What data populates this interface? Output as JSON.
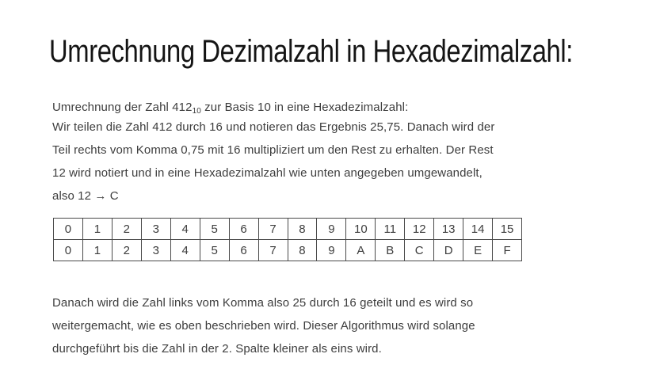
{
  "title": "Umrechnung Dezimalzahl in Hexadezimalzahl:",
  "intro": {
    "prefix": "Umrechnung der Zahl 412",
    "subscript": "10",
    "suffix": " zur Basis 10 in eine Hexadezimalzahl:"
  },
  "paragraph_method": {
    "lines": [
      "Wir teilen die Zahl 412 durch 16 und notieren das Ergebnis 25,75. Danach wird der",
      "Teil rechts vom Komma 0,75 mit 16 multipliziert um den Rest zu erhalten. Der Rest",
      "12 wird notiert und in eine Hexadezimalzahl wie unten angegeben umgewandelt,",
      "also 12 → C"
    ]
  },
  "hex_table": {
    "decimal_row": [
      "0",
      "1",
      "2",
      "3",
      "4",
      "5",
      "6",
      "7",
      "8",
      "9",
      "10",
      "11",
      "12",
      "13",
      "14",
      "15"
    ],
    "hex_row": [
      "0",
      "1",
      "2",
      "3",
      "4",
      "5",
      "6",
      "7",
      "8",
      "9",
      "A",
      "B",
      "C",
      "D",
      "E",
      "F"
    ]
  },
  "paragraph_continuation": {
    "lines": [
      "Danach wird die Zahl links vom Komma also 25 durch 16 geteilt und es wird so",
      "weitergemacht, wie es oben beschrieben wird. Dieser Algorithmus wird solange",
      "durchgeführt bis die Zahl in der 2. Spalte kleiner als eins wird."
    ]
  },
  "colors": {
    "background": "#ffffff",
    "title_text": "#141414",
    "body_text": "#3d3d3d",
    "table_border": "#4a4a4a"
  }
}
